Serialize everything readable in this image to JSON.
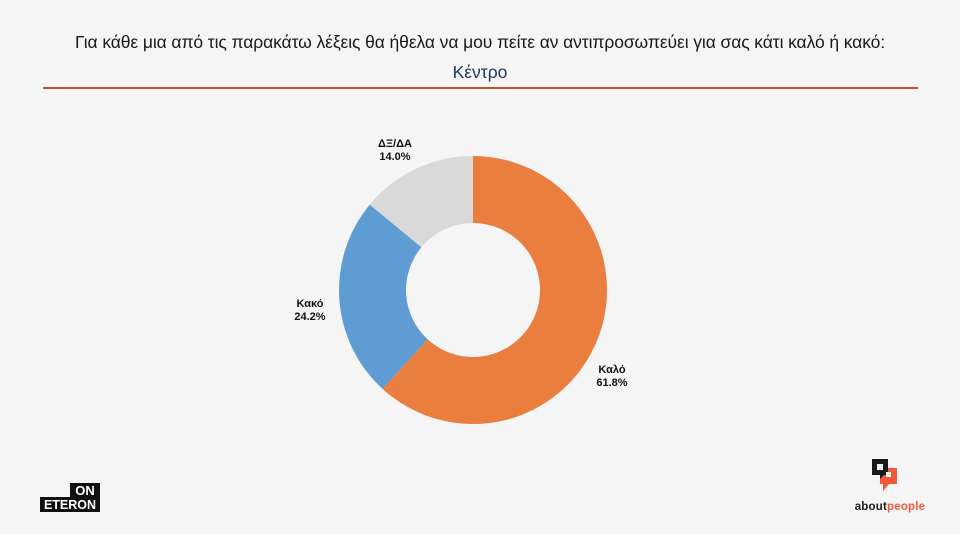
{
  "header": {
    "title": "Για κάθε μια από τις παρακάτω λέξεις θα ήθελα να μου πείτε αν αντιπροσωπεύει για σας κάτι καλό ή κακό:",
    "subtitle": "Κέντρο"
  },
  "colors": {
    "accent_rule": "#c9502f",
    "kalo": "#e97e3e",
    "kako": "#5e9cd3",
    "dxda": "#d9d9d9",
    "subtitle": "#1f3864"
  },
  "chart_data": {
    "type": "pie",
    "variant": "donut",
    "title": "Κέντρο",
    "start_angle": "12 o'clock, clockwise",
    "categories": [
      "Καλό",
      "Κακό",
      "ΔΞ/ΔΑ"
    ],
    "values": [
      61.8,
      24.2,
      14.0
    ],
    "labels": [
      "61.8%",
      "24.2%",
      "14.0%"
    ],
    "colors": [
      "#e97e3e",
      "#5e9cd3",
      "#d9d9d9"
    ],
    "legend": "none (data labels outside)"
  },
  "labels": {
    "kalo": {
      "name": "Καλό",
      "value": "61.8%"
    },
    "kako": {
      "name": "Κακό",
      "value": "24.2%"
    },
    "dxda": {
      "name": "ΔΞ/ΔΑ",
      "value": "14.0%"
    }
  },
  "logos": {
    "left_top": "ON",
    "left_bottom": "ETERON",
    "right_part1": "about",
    "right_part2": "people"
  }
}
